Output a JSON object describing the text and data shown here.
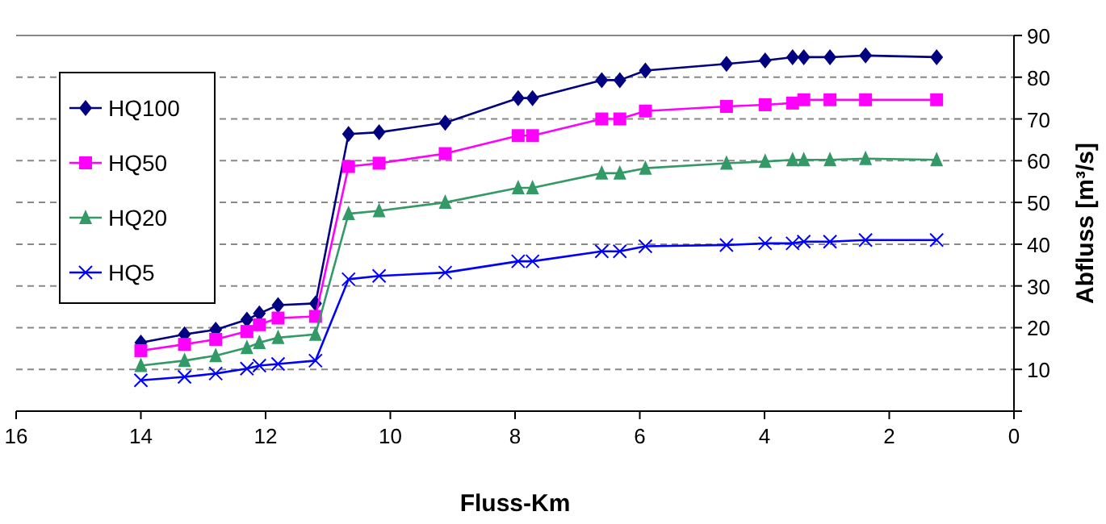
{
  "chart_data": {
    "type": "line",
    "xlabel": "Fluss-Km",
    "ylabel": "Abfluss [m³/s]",
    "x": [
      14.0,
      13.3,
      12.8,
      12.3,
      12.1,
      11.8,
      11.2,
      10.67,
      10.18,
      9.12,
      7.95,
      7.72,
      6.61,
      6.32,
      5.91,
      4.61,
      3.99,
      3.55,
      3.37,
      2.95,
      2.38,
      1.24
    ],
    "series": [
      {
        "name": "HQ100",
        "color": "#000080",
        "marker": "diamond",
        "values": [
          16.4,
          18.4,
          19.5,
          21.9,
          23.4,
          25.4,
          25.8,
          66.4,
          66.8,
          69.1,
          75,
          75,
          79.3,
          79.3,
          81.6,
          83.2,
          84,
          84.8,
          84.8,
          84.8,
          85.2,
          84.8
        ]
      },
      {
        "name": "HQ50",
        "color": "#ff00ff",
        "marker": "square",
        "values": [
          14.5,
          16,
          17.2,
          19.1,
          20.7,
          22.3,
          22.7,
          58.6,
          59.4,
          61.7,
          66,
          66,
          70,
          70,
          71.9,
          73,
          73.4,
          73.8,
          74.6,
          74.6,
          74.6,
          74.6
        ]
      },
      {
        "name": "HQ20",
        "color": "#339966",
        "marker": "triangle",
        "values": [
          10.9,
          12.1,
          13.3,
          15.2,
          16.4,
          17.6,
          18.4,
          47.3,
          48,
          50,
          53.5,
          53.5,
          57,
          57,
          58.2,
          59.4,
          59.8,
          60.2,
          60.2,
          60.2,
          60.5,
          60.2
        ]
      },
      {
        "name": "HQ5",
        "color": "#0000ff",
        "marker": "cross",
        "values": [
          7.4,
          8.2,
          9,
          10.2,
          10.9,
          11.3,
          12.1,
          31.6,
          32.4,
          33.2,
          35.9,
          35.9,
          38.3,
          38.3,
          39.5,
          39.8,
          40.2,
          40.2,
          40.6,
          40.6,
          41,
          41
        ]
      }
    ],
    "xlim": [
      16,
      0
    ],
    "xticks": [
      16,
      14,
      12,
      10,
      8,
      6,
      4,
      2,
      0
    ],
    "ylim": [
      0,
      90
    ],
    "yticks": [
      {
        "value": 0,
        "label": null
      },
      10,
      20,
      30,
      40,
      50,
      60,
      70,
      80,
      90
    ],
    "grid": "y",
    "legend": "top left",
    "line_style": "solid"
  }
}
